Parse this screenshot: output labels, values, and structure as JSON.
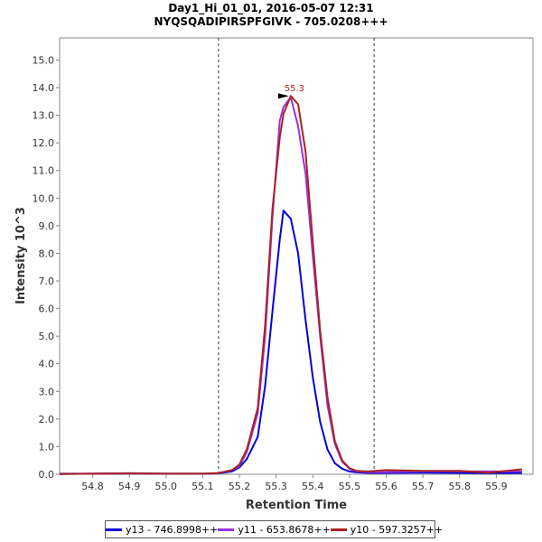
{
  "chart_data": {
    "type": "line",
    "title_lines": [
      "Day1_Hi_01_01, 2016-05-07 12:31",
      "NYQSQADIPIRSPFGIVK - 705.0208+++"
    ],
    "xlabel": "Retention Time",
    "ylabel": "Intensity 10^3",
    "xlim": [
      54.71,
      56.0
    ],
    "ylim": [
      0,
      15.8
    ],
    "x_ticks": [
      54.8,
      54.9,
      55.0,
      55.1,
      55.2,
      55.3,
      55.4,
      55.5,
      55.6,
      55.7,
      55.8,
      55.9
    ],
    "y_ticks": [
      0.0,
      1.0,
      2.0,
      3.0,
      4.0,
      5.0,
      6.0,
      7.0,
      8.0,
      9.0,
      10.0,
      11.0,
      12.0,
      13.0,
      14.0,
      15.0
    ],
    "boundary_lines": [
      55.143,
      55.567
    ],
    "peak_annotation": {
      "label": "55.3",
      "x": 55.34,
      "y": 13.7,
      "color": "#b22222"
    },
    "grid": false,
    "legend_position": "bottom",
    "series": [
      {
        "name": "y13 - 746.8998++",
        "color": "#0000dd",
        "x": [
          54.71,
          54.8,
          54.9,
          55.0,
          55.1,
          55.14,
          55.18,
          55.2,
          55.22,
          55.25,
          55.27,
          55.29,
          55.31,
          55.32,
          55.34,
          55.36,
          55.38,
          55.4,
          55.42,
          55.44,
          55.46,
          55.48,
          55.5,
          55.52,
          55.55,
          55.6,
          55.7,
          55.8,
          55.88,
          55.97
        ],
        "y": [
          0.02,
          0.02,
          0.03,
          0.02,
          0.02,
          0.03,
          0.1,
          0.25,
          0.55,
          1.35,
          3.2,
          5.9,
          8.5,
          9.55,
          9.25,
          8.0,
          5.6,
          3.5,
          1.9,
          0.9,
          0.4,
          0.2,
          0.1,
          0.07,
          0.05,
          0.05,
          0.06,
          0.05,
          0.04,
          0.05
        ]
      },
      {
        "name": "y11 - 653.8678++",
        "color": "#9933dd",
        "x": [
          54.71,
          54.8,
          54.9,
          55.0,
          55.1,
          55.14,
          55.18,
          55.2,
          55.22,
          55.25,
          55.27,
          55.29,
          55.31,
          55.32,
          55.34,
          55.36,
          55.38,
          55.4,
          55.42,
          55.44,
          55.46,
          55.48,
          55.5,
          55.52,
          55.55,
          55.6,
          55.7,
          55.8,
          55.88,
          55.97
        ],
        "y": [
          0.01,
          0.02,
          0.04,
          0.02,
          0.02,
          0.03,
          0.15,
          0.3,
          0.8,
          2.2,
          5.0,
          9.3,
          12.8,
          13.3,
          13.65,
          12.6,
          10.9,
          7.9,
          5.0,
          2.5,
          1.1,
          0.45,
          0.2,
          0.1,
          0.08,
          0.08,
          0.1,
          0.1,
          0.1,
          0.1
        ]
      },
      {
        "name": "y10 - 597.3257++",
        "color": "#aa2222",
        "x": [
          54.71,
          54.8,
          54.9,
          55.0,
          55.1,
          55.14,
          55.18,
          55.2,
          55.22,
          55.25,
          55.27,
          55.29,
          55.31,
          55.32,
          55.34,
          55.36,
          55.38,
          55.4,
          55.42,
          55.44,
          55.46,
          55.48,
          55.5,
          55.52,
          55.55,
          55.6,
          55.7,
          55.8,
          55.88,
          55.97
        ],
        "y": [
          0.01,
          0.02,
          0.03,
          0.02,
          0.02,
          0.04,
          0.15,
          0.35,
          0.9,
          2.4,
          5.4,
          9.6,
          12.2,
          13.05,
          13.7,
          13.4,
          11.7,
          8.4,
          5.2,
          2.8,
          1.2,
          0.5,
          0.22,
          0.12,
          0.1,
          0.15,
          0.12,
          0.12,
          0.06,
          0.18
        ]
      }
    ]
  }
}
